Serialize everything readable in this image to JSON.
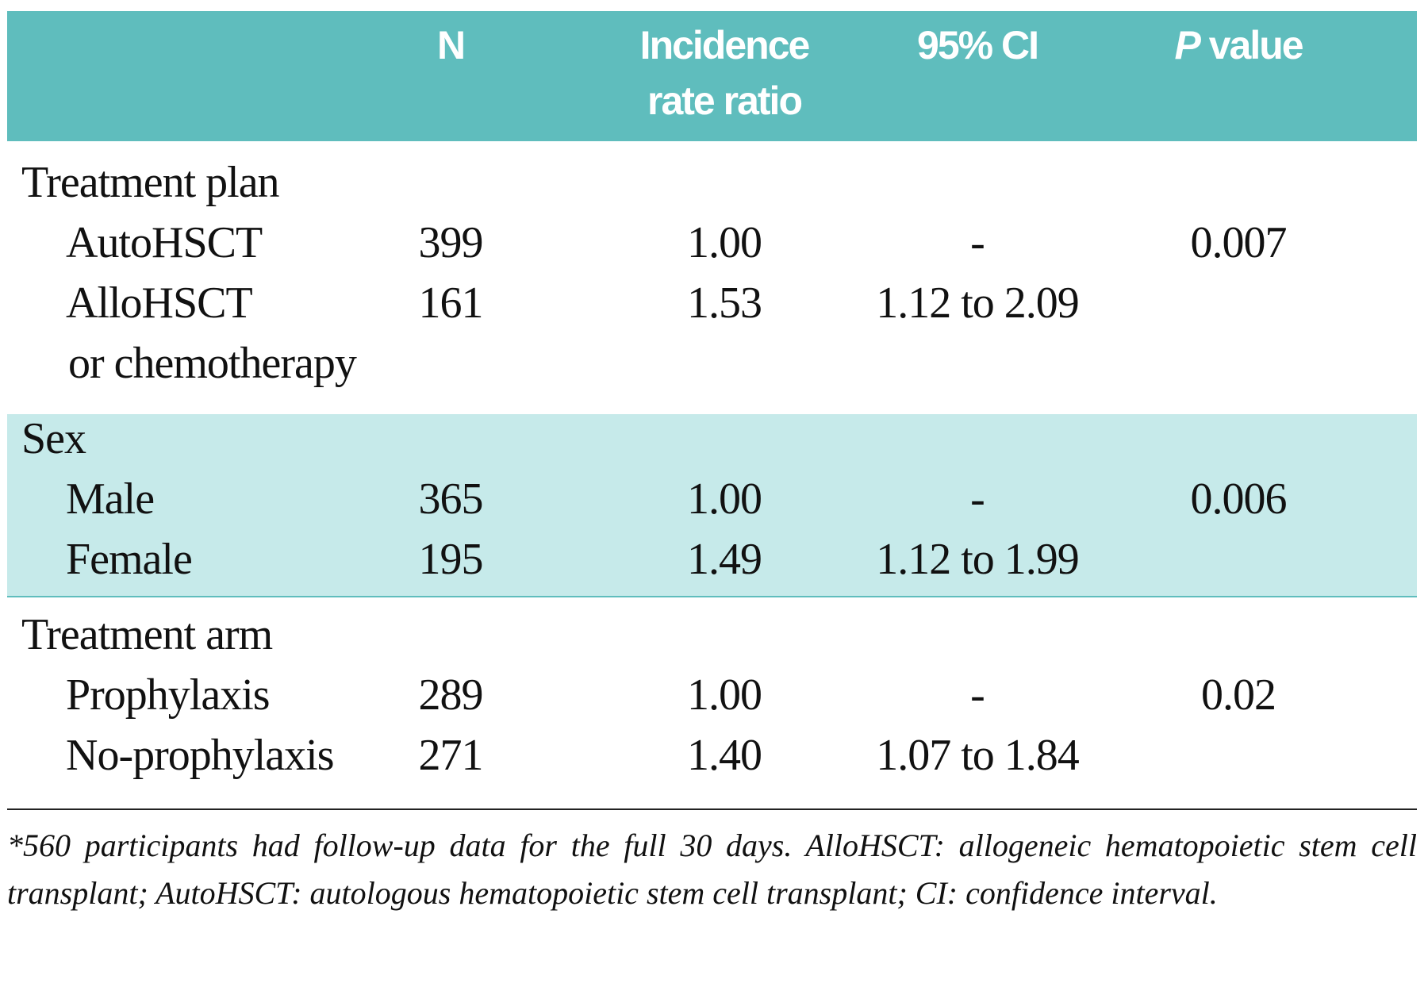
{
  "table": {
    "header": {
      "n": "N",
      "irr": "Incidence rate ratio",
      "ci": "95% CI",
      "p_value": {
        "symbol": "P",
        "label": "value"
      }
    },
    "groups": [
      {
        "label": "Treatment plan",
        "rows": [
          {
            "label": [
              "AutoHSCT"
            ],
            "n": "399",
            "irr": "1.00",
            "ci": "-",
            "p": "0.007"
          },
          {
            "label": [
              "AlloHSCT",
              "or chemotherapy"
            ],
            "n": "161",
            "irr": "1.53",
            "ci": "1.12 to 2.09"
          }
        ]
      },
      {
        "label": "Sex",
        "rows": [
          {
            "label": [
              "Male"
            ],
            "n": "365",
            "irr": "1.00",
            "ci": "-",
            "p": "0.006"
          },
          {
            "label": [
              "Female"
            ],
            "n": "195",
            "irr": "1.49",
            "ci": "1.12 to 1.99"
          }
        ]
      },
      {
        "label": "Treatment arm",
        "rows": [
          {
            "label": [
              "Prophylaxis"
            ],
            "n": "289",
            "irr": "1.00",
            "ci": "-",
            "p": "0.02"
          },
          {
            "label": [
              "No-prophylaxis"
            ],
            "n": "271",
            "irr": "1.40",
            "ci": "1.07 to 1.84"
          }
        ]
      }
    ],
    "footnote": "*560 participants had follow-up data for the full 30 days. AlloHSCT: allogeneic hematopoietic stem cell transplant; AutoHSCT: autologous hematopoietic stem cell transplant; CI: confidence interval."
  }
}
